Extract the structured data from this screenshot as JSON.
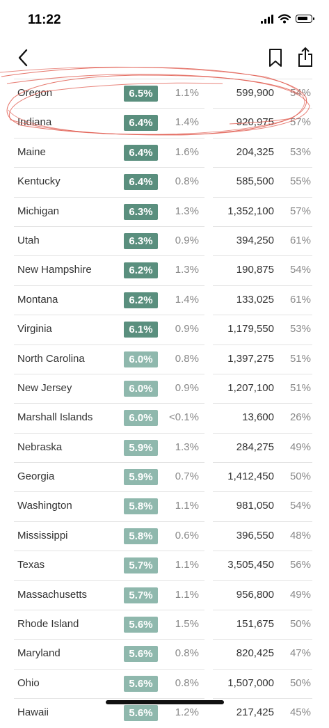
{
  "status_bar": {
    "time": "11:22"
  },
  "colors": {
    "rate_dark": "#5a8f7e",
    "rate_light": "#8fb8ad",
    "scribble": "#e05a4e"
  },
  "rows": [
    {
      "state": "Oregon",
      "rate": "6.5%",
      "change": "1.1%",
      "population": "599,900",
      "share": "54%",
      "tone": "dark"
    },
    {
      "state": "Indiana",
      "rate": "6.4%",
      "change": "1.4%",
      "population": "920,975",
      "share": "57%",
      "tone": "dark"
    },
    {
      "state": "Maine",
      "rate": "6.4%",
      "change": "1.6%",
      "population": "204,325",
      "share": "53%",
      "tone": "dark"
    },
    {
      "state": "Kentucky",
      "rate": "6.4%",
      "change": "0.8%",
      "population": "585,500",
      "share": "55%",
      "tone": "dark"
    },
    {
      "state": "Michigan",
      "rate": "6.3%",
      "change": "1.3%",
      "population": "1,352,100",
      "share": "57%",
      "tone": "dark"
    },
    {
      "state": "Utah",
      "rate": "6.3%",
      "change": "0.9%",
      "population": "394,250",
      "share": "61%",
      "tone": "dark"
    },
    {
      "state": "New Hampshire",
      "rate": "6.2%",
      "change": "1.3%",
      "population": "190,875",
      "share": "54%",
      "tone": "dark"
    },
    {
      "state": "Montana",
      "rate": "6.2%",
      "change": "1.4%",
      "population": "133,025",
      "share": "61%",
      "tone": "dark"
    },
    {
      "state": "Virginia",
      "rate": "6.1%",
      "change": "0.9%",
      "population": "1,179,550",
      "share": "53%",
      "tone": "dark"
    },
    {
      "state": "North Carolina",
      "rate": "6.0%",
      "change": "0.8%",
      "population": "1,397,275",
      "share": "51%",
      "tone": "light"
    },
    {
      "state": "New Jersey",
      "rate": "6.0%",
      "change": "0.9%",
      "population": "1,207,100",
      "share": "51%",
      "tone": "light"
    },
    {
      "state": "Marshall Islands",
      "rate": "6.0%",
      "change": "<0.1%",
      "population": "13,600",
      "share": "26%",
      "tone": "light"
    },
    {
      "state": "Nebraska",
      "rate": "5.9%",
      "change": "1.3%",
      "population": "284,275",
      "share": "49%",
      "tone": "light"
    },
    {
      "state": "Georgia",
      "rate": "5.9%",
      "change": "0.7%",
      "population": "1,412,450",
      "share": "50%",
      "tone": "light"
    },
    {
      "state": "Washington",
      "rate": "5.8%",
      "change": "1.1%",
      "population": "981,050",
      "share": "54%",
      "tone": "light"
    },
    {
      "state": "Mississippi",
      "rate": "5.8%",
      "change": "0.6%",
      "population": "396,550",
      "share": "48%",
      "tone": "light"
    },
    {
      "state": "Texas",
      "rate": "5.7%",
      "change": "1.1%",
      "population": "3,505,450",
      "share": "56%",
      "tone": "light"
    },
    {
      "state": "Massachusetts",
      "rate": "5.7%",
      "change": "1.1%",
      "population": "956,800",
      "share": "49%",
      "tone": "light"
    },
    {
      "state": "Rhode Island",
      "rate": "5.6%",
      "change": "1.5%",
      "population": "151,675",
      "share": "50%",
      "tone": "light"
    },
    {
      "state": "Maryland",
      "rate": "5.6%",
      "change": "0.8%",
      "population": "820,425",
      "share": "47%",
      "tone": "light"
    },
    {
      "state": "Ohio",
      "rate": "5.6%",
      "change": "0.8%",
      "population": "1,507,000",
      "share": "50%",
      "tone": "light"
    },
    {
      "state": "Hawaii",
      "rate": "5.6%",
      "change": "1.2%",
      "population": "217,425",
      "share": "45%",
      "tone": "light"
    }
  ]
}
